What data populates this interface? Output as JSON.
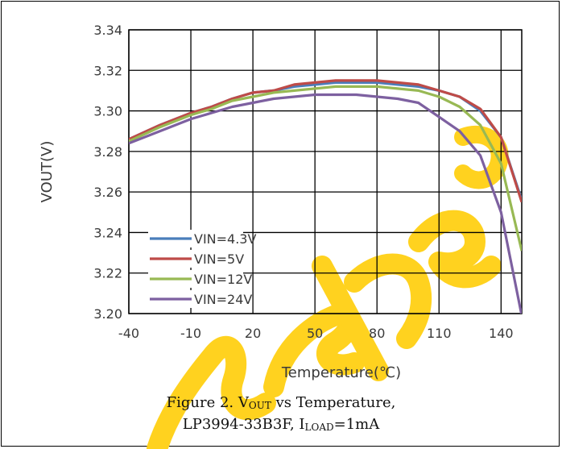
{
  "chart_data": {
    "type": "line",
    "title": "",
    "xlabel": "Temperature(℃)",
    "ylabel": "VOUT(V)",
    "xlim": [
      -40,
      150
    ],
    "ylim": [
      3.2,
      3.34
    ],
    "x_ticks": [
      "-40",
      "-10",
      "20",
      "50",
      "80",
      "110",
      "140"
    ],
    "y_ticks": [
      "3.34",
      "3.32",
      "3.30",
      "3.28",
      "3.26",
      "3.24",
      "3.22",
      "3.20"
    ],
    "grid": true,
    "legend_position": "bottom-left",
    "series": [
      {
        "name": "VIN=4.3V",
        "color": "#4a7ebb",
        "x": [
          -40,
          -25,
          -10,
          0,
          10,
          20,
          30,
          40,
          50,
          60,
          70,
          80,
          90,
          100,
          110,
          120,
          130,
          140,
          150
        ],
        "y": [
          3.286,
          3.293,
          3.299,
          3.302,
          3.306,
          3.309,
          3.31,
          3.312,
          3.313,
          3.314,
          3.314,
          3.314,
          3.313,
          3.312,
          3.31,
          3.307,
          3.3,
          3.287,
          3.256
        ]
      },
      {
        "name": "VIN=5V",
        "color": "#be4b48",
        "x": [
          -40,
          -25,
          -10,
          0,
          10,
          20,
          30,
          40,
          50,
          60,
          70,
          80,
          90,
          100,
          110,
          120,
          130,
          140,
          150
        ],
        "y": [
          3.286,
          3.293,
          3.299,
          3.302,
          3.306,
          3.309,
          3.31,
          3.313,
          3.314,
          3.315,
          3.315,
          3.315,
          3.314,
          3.313,
          3.31,
          3.307,
          3.301,
          3.287,
          3.255
        ]
      },
      {
        "name": "VIN=12V",
        "color": "#98b954",
        "x": [
          -40,
          -25,
          -10,
          0,
          10,
          20,
          30,
          40,
          50,
          60,
          70,
          80,
          90,
          100,
          110,
          120,
          130,
          140,
          150
        ],
        "y": [
          3.285,
          3.292,
          3.298,
          3.301,
          3.305,
          3.307,
          3.309,
          3.31,
          3.311,
          3.312,
          3.312,
          3.312,
          3.311,
          3.31,
          3.307,
          3.302,
          3.293,
          3.274,
          3.231
        ]
      },
      {
        "name": "VIN=24V",
        "color": "#7d60a0",
        "x": [
          -40,
          -25,
          -10,
          0,
          10,
          20,
          30,
          40,
          50,
          60,
          70,
          80,
          90,
          100,
          110,
          120,
          130,
          140,
          150
        ],
        "y": [
          3.284,
          3.29,
          3.296,
          3.299,
          3.302,
          3.304,
          3.306,
          3.307,
          3.308,
          3.308,
          3.308,
          3.307,
          3.306,
          3.304,
          3.297,
          3.29,
          3.278,
          3.25,
          3.199
        ]
      }
    ]
  },
  "caption": {
    "line1_prefix": "Figure 2. V",
    "line1_sub": "OUT",
    "line1_suffix": " vs Temperature,",
    "line2_prefix": "LP3994-33B3F, I",
    "line2_sub": "LOAD",
    "line2_suffix": "=1mA"
  },
  "watermark": {
    "color": "#ffd21f"
  }
}
